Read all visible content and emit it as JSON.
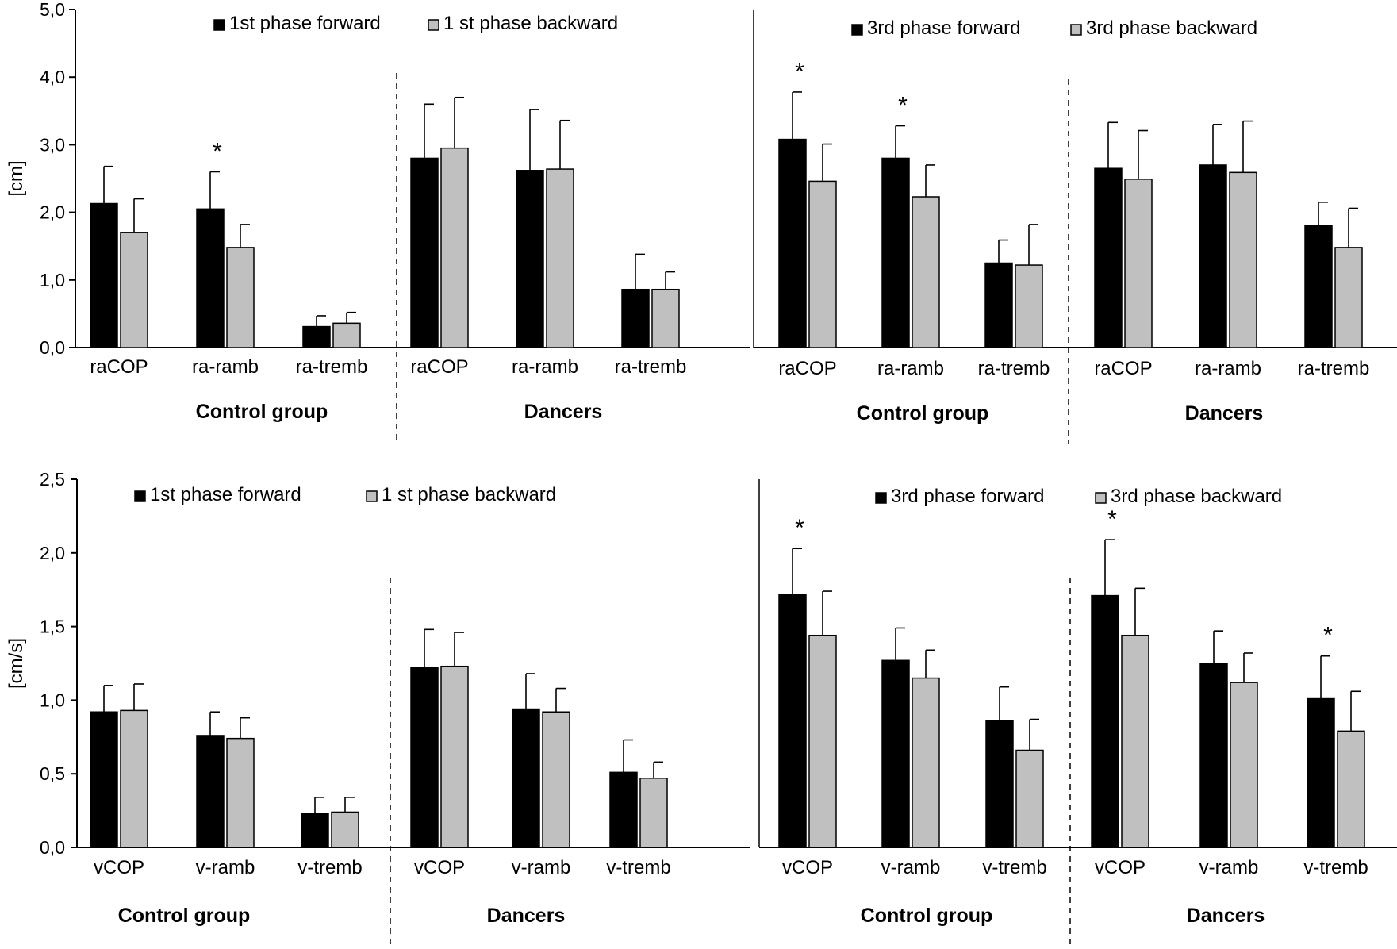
{
  "chart_data": [
    {
      "type": "bar",
      "ylabel": "[cm]",
      "ylim": [
        0,
        5
      ],
      "yticks": [
        "0,0",
        "1,0",
        "2,0",
        "3,0",
        "4,0",
        "5,0"
      ],
      "categories": [
        "raCOP",
        "ra-ramb",
        "ra-tremb",
        "raCOP",
        "ra-ramb",
        "ra-tremb"
      ],
      "groups": [
        "Control group",
        "Dancers"
      ],
      "legend_position": "top",
      "series": [
        {
          "name": "1st phase forward",
          "color": "#000000",
          "values": [
            2.13,
            2.05,
            0.31,
            2.8,
            2.62,
            0.86
          ],
          "errors": [
            0.55,
            0.55,
            0.16,
            0.8,
            0.9,
            0.52
          ]
        },
        {
          "name": "1 st phase backward",
          "color": "#c0c0c0",
          "values": [
            1.7,
            1.48,
            0.36,
            2.95,
            2.64,
            0.86
          ],
          "errors": [
            0.5,
            0.34,
            0.16,
            0.75,
            0.72,
            0.26
          ]
        }
      ],
      "significance": [
        {
          "category_index": 1,
          "label": "*"
        }
      ]
    },
    {
      "type": "bar",
      "ylabel": "",
      "ylim": [
        0,
        5
      ],
      "yticks": [],
      "categories": [
        "raCOP",
        "ra-ramb",
        "ra-tremb",
        "raCOP",
        "ra-ramb",
        "ra-tremb"
      ],
      "groups": [
        "Control group",
        "Dancers"
      ],
      "legend_position": "top",
      "series": [
        {
          "name": "3rd phase forward",
          "color": "#000000",
          "values": [
            3.08,
            2.8,
            1.25,
            2.65,
            2.7,
            1.8
          ],
          "errors": [
            0.7,
            0.48,
            0.34,
            0.68,
            0.6,
            0.35
          ]
        },
        {
          "name": "3rd phase backward",
          "color": "#c0c0c0",
          "values": [
            2.46,
            2.23,
            1.22,
            2.49,
            2.59,
            1.48
          ],
          "errors": [
            0.55,
            0.47,
            0.6,
            0.72,
            0.76,
            0.58
          ]
        }
      ],
      "significance": [
        {
          "category_index": 0,
          "label": "*"
        },
        {
          "category_index": 1,
          "label": "*"
        }
      ]
    },
    {
      "type": "bar",
      "ylabel": "[cm/s]",
      "ylim": [
        0,
        2.5
      ],
      "yticks": [
        "0,0",
        "0,5",
        "1,0",
        "1,5",
        "2,0",
        "2,5"
      ],
      "categories": [
        "vCOP",
        "v-ramb",
        "v-tremb",
        "vCOP",
        "v-ramb",
        "v-tremb"
      ],
      "groups": [
        "Control group",
        "Dancers"
      ],
      "legend_position": "top",
      "series": [
        {
          "name": "1st phase forward",
          "color": "#000000",
          "values": [
            0.92,
            0.76,
            0.23,
            1.22,
            0.94,
            0.51
          ],
          "errors": [
            0.18,
            0.16,
            0.11,
            0.26,
            0.24,
            0.22
          ]
        },
        {
          "name": "1 st phase backward",
          "color": "#c0c0c0",
          "values": [
            0.93,
            0.74,
            0.24,
            1.23,
            0.92,
            0.47
          ],
          "errors": [
            0.18,
            0.14,
            0.1,
            0.23,
            0.16,
            0.11
          ]
        }
      ],
      "significance": []
    },
    {
      "type": "bar",
      "ylabel": "",
      "ylim": [
        0,
        2.5
      ],
      "yticks": [],
      "categories": [
        "vCOP",
        "v-ramb",
        "v-tremb",
        "vCOP",
        "v-ramb",
        "v-tremb"
      ],
      "groups": [
        "Control group",
        "Dancers"
      ],
      "legend_position": "top",
      "series": [
        {
          "name": "3rd phase forward",
          "color": "#000000",
          "values": [
            1.72,
            1.27,
            0.86,
            1.71,
            1.25,
            1.01
          ],
          "errors": [
            0.31,
            0.22,
            0.23,
            0.38,
            0.22,
            0.29
          ]
        },
        {
          "name": "3rd phase backward",
          "color": "#c0c0c0",
          "values": [
            1.44,
            1.15,
            0.66,
            1.44,
            1.12,
            0.79
          ],
          "errors": [
            0.3,
            0.19,
            0.21,
            0.32,
            0.2,
            0.27
          ]
        }
      ],
      "significance": [
        {
          "category_index": 0,
          "label": "*"
        },
        {
          "category_index": 3,
          "label": "*"
        },
        {
          "category_index": 5,
          "label": "*"
        }
      ]
    }
  ]
}
